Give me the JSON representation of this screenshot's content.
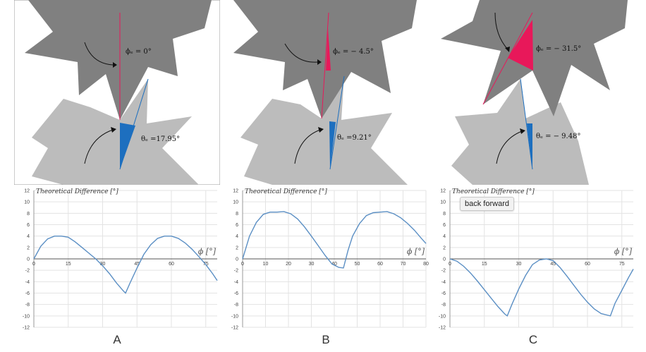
{
  "colors": {
    "dark_gear": "#7f7f7f",
    "light_gear": "#bcbcbc",
    "red": "#e8185a",
    "blue": "#1d6fbf",
    "curve": "#5b8fc4",
    "grid": "#e3e3e3",
    "axis": "#999999"
  },
  "tooltip": {
    "text": "back forward"
  },
  "panels": [
    {
      "letter": "A",
      "phi_label": "ϕₑ = 0°",
      "theta_label": "θₑ =17.95°"
    },
    {
      "letter": "B",
      "phi_label": "ϕₑ = − 4.5°",
      "theta_label": "θₑ =9.21°"
    },
    {
      "letter": "C",
      "phi_label": "ϕₑ = − 31.5°",
      "theta_label": "θₑ = − 9.48°"
    }
  ],
  "chart_data": [
    {
      "type": "line",
      "title": "Theoretical Difference [°]",
      "xlabel": "ϕ [°]",
      "xlim": [
        0,
        80
      ],
      "ylim": [
        -12,
        12
      ],
      "xticks": [
        0,
        15,
        30,
        45,
        60,
        75
      ],
      "yticks": [
        -12,
        -10,
        -8,
        -6,
        -4,
        -2,
        0,
        2,
        4,
        6,
        8,
        10,
        12
      ],
      "series": [
        {
          "x": [
            0,
            3,
            6,
            9,
            12,
            15,
            18,
            21,
            24,
            27,
            30,
            33,
            36,
            39,
            40,
            42,
            45,
            48,
            51,
            54,
            57,
            60,
            63,
            66,
            69,
            72,
            75,
            78,
            80
          ],
          "y": [
            0,
            2.2,
            3.5,
            4.0,
            4.0,
            3.8,
            3.0,
            2.0,
            1.0,
            0,
            -1.2,
            -2.6,
            -4.2,
            -5.6,
            -6.0,
            -4.2,
            -1.6,
            0.8,
            2.5,
            3.6,
            4.0,
            4.0,
            3.6,
            2.8,
            1.7,
            0.4,
            -1.0,
            -2.6,
            -3.8
          ]
        }
      ]
    },
    {
      "type": "line",
      "title": "Theoretical Difference [°]",
      "xlabel": "ϕ [°]",
      "xlim": [
        0,
        80
      ],
      "ylim": [
        -12,
        12
      ],
      "xticks": [
        0,
        10,
        20,
        30,
        40,
        50,
        60,
        70,
        80
      ],
      "yticks": [
        -12,
        -10,
        -8,
        -6,
        -4,
        -2,
        0,
        2,
        4,
        6,
        8,
        10,
        12
      ],
      "series": [
        {
          "x": [
            0,
            3,
            6,
            9,
            12,
            15,
            18,
            21,
            24,
            27,
            30,
            33,
            36,
            39,
            42,
            44,
            46,
            48,
            51,
            54,
            57,
            60,
            63,
            66,
            69,
            72,
            75,
            78,
            80
          ],
          "y": [
            0,
            4.0,
            6.4,
            7.8,
            8.2,
            8.2,
            8.3,
            7.9,
            7.0,
            5.6,
            4.0,
            2.3,
            0.6,
            -0.9,
            -1.5,
            -1.6,
            1.5,
            4.0,
            6.2,
            7.6,
            8.1,
            8.2,
            8.3,
            7.9,
            7.2,
            6.2,
            5.0,
            3.6,
            2.7
          ]
        }
      ]
    },
    {
      "type": "line",
      "title": "Theoretical Difference [°]",
      "xlabel": "ϕ [°]",
      "xlim": [
        0,
        80
      ],
      "ylim": [
        -12,
        12
      ],
      "xticks": [
        0,
        15,
        30,
        45,
        60,
        75
      ],
      "yticks": [
        -12,
        -10,
        -8,
        -6,
        -4,
        -2,
        0,
        2,
        4,
        6,
        8,
        10,
        12
      ],
      "series": [
        {
          "x": [
            0,
            3,
            6,
            9,
            12,
            15,
            18,
            21,
            24,
            25,
            27,
            30,
            33,
            36,
            39,
            42,
            45,
            48,
            51,
            54,
            57,
            60,
            63,
            66,
            69,
            70,
            72,
            75,
            78,
            80
          ],
          "y": [
            0,
            -0.4,
            -1.3,
            -2.5,
            -3.9,
            -5.4,
            -6.9,
            -8.4,
            -9.7,
            -10.0,
            -8.0,
            -5.3,
            -2.9,
            -1.0,
            -0.2,
            0,
            -0.3,
            -1.5,
            -3.0,
            -4.6,
            -6.2,
            -7.6,
            -8.8,
            -9.6,
            -9.9,
            -10.0,
            -7.8,
            -5.5,
            -3.2,
            -1.8
          ]
        }
      ]
    }
  ]
}
